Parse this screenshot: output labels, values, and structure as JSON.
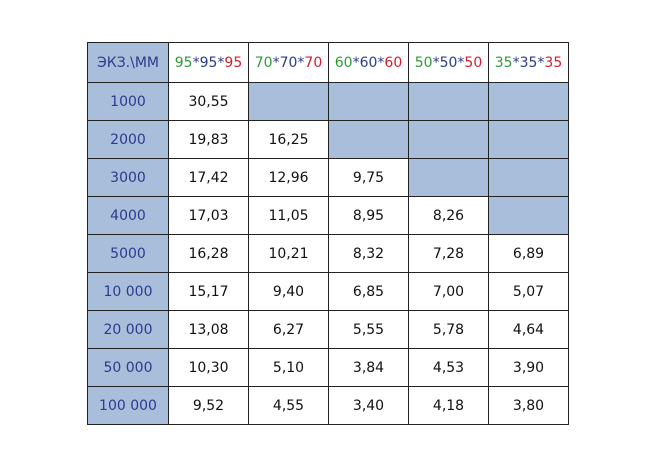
{
  "table": {
    "header": {
      "corner": "ЭКЗ.\\ММ",
      "columns": [
        [
          "95",
          "*",
          "95",
          "*",
          "95"
        ],
        [
          "70",
          "*",
          "70",
          "*",
          "70"
        ],
        [
          "60",
          "*",
          "60",
          "*",
          "60"
        ],
        [
          "50",
          "*",
          "50",
          "*",
          "50"
        ],
        [
          "35",
          "*",
          "35",
          "*",
          "35"
        ]
      ]
    },
    "rows": [
      {
        "label": "1000",
        "cells": [
          "30,55"
        ]
      },
      {
        "label": "2000",
        "cells": [
          "19,83",
          "16,25"
        ]
      },
      {
        "label": "3000",
        "cells": [
          "17,42",
          "12,96",
          "9,75"
        ]
      },
      {
        "label": "4000",
        "cells": [
          "17,03",
          "11,05",
          "8,95",
          "8,26"
        ]
      },
      {
        "label": "5000",
        "cells": [
          "16,28",
          "10,21",
          "8,32",
          "7,28",
          "6,89"
        ]
      },
      {
        "label": "10 000",
        "cells": [
          "15,17",
          "9,40",
          "6,85",
          "7,00",
          "5,07"
        ]
      },
      {
        "label": "20 000",
        "cells": [
          "13,08",
          "6,27",
          "5,55",
          "5,78",
          "4,64"
        ]
      },
      {
        "label": "50 000",
        "cells": [
          "10,30",
          "5,10",
          "3,84",
          "4,53",
          "3,90"
        ]
      },
      {
        "label": "100 000",
        "cells": [
          "9,52",
          "4,55",
          "3,40",
          "4,18",
          "3,80"
        ]
      }
    ]
  }
}
